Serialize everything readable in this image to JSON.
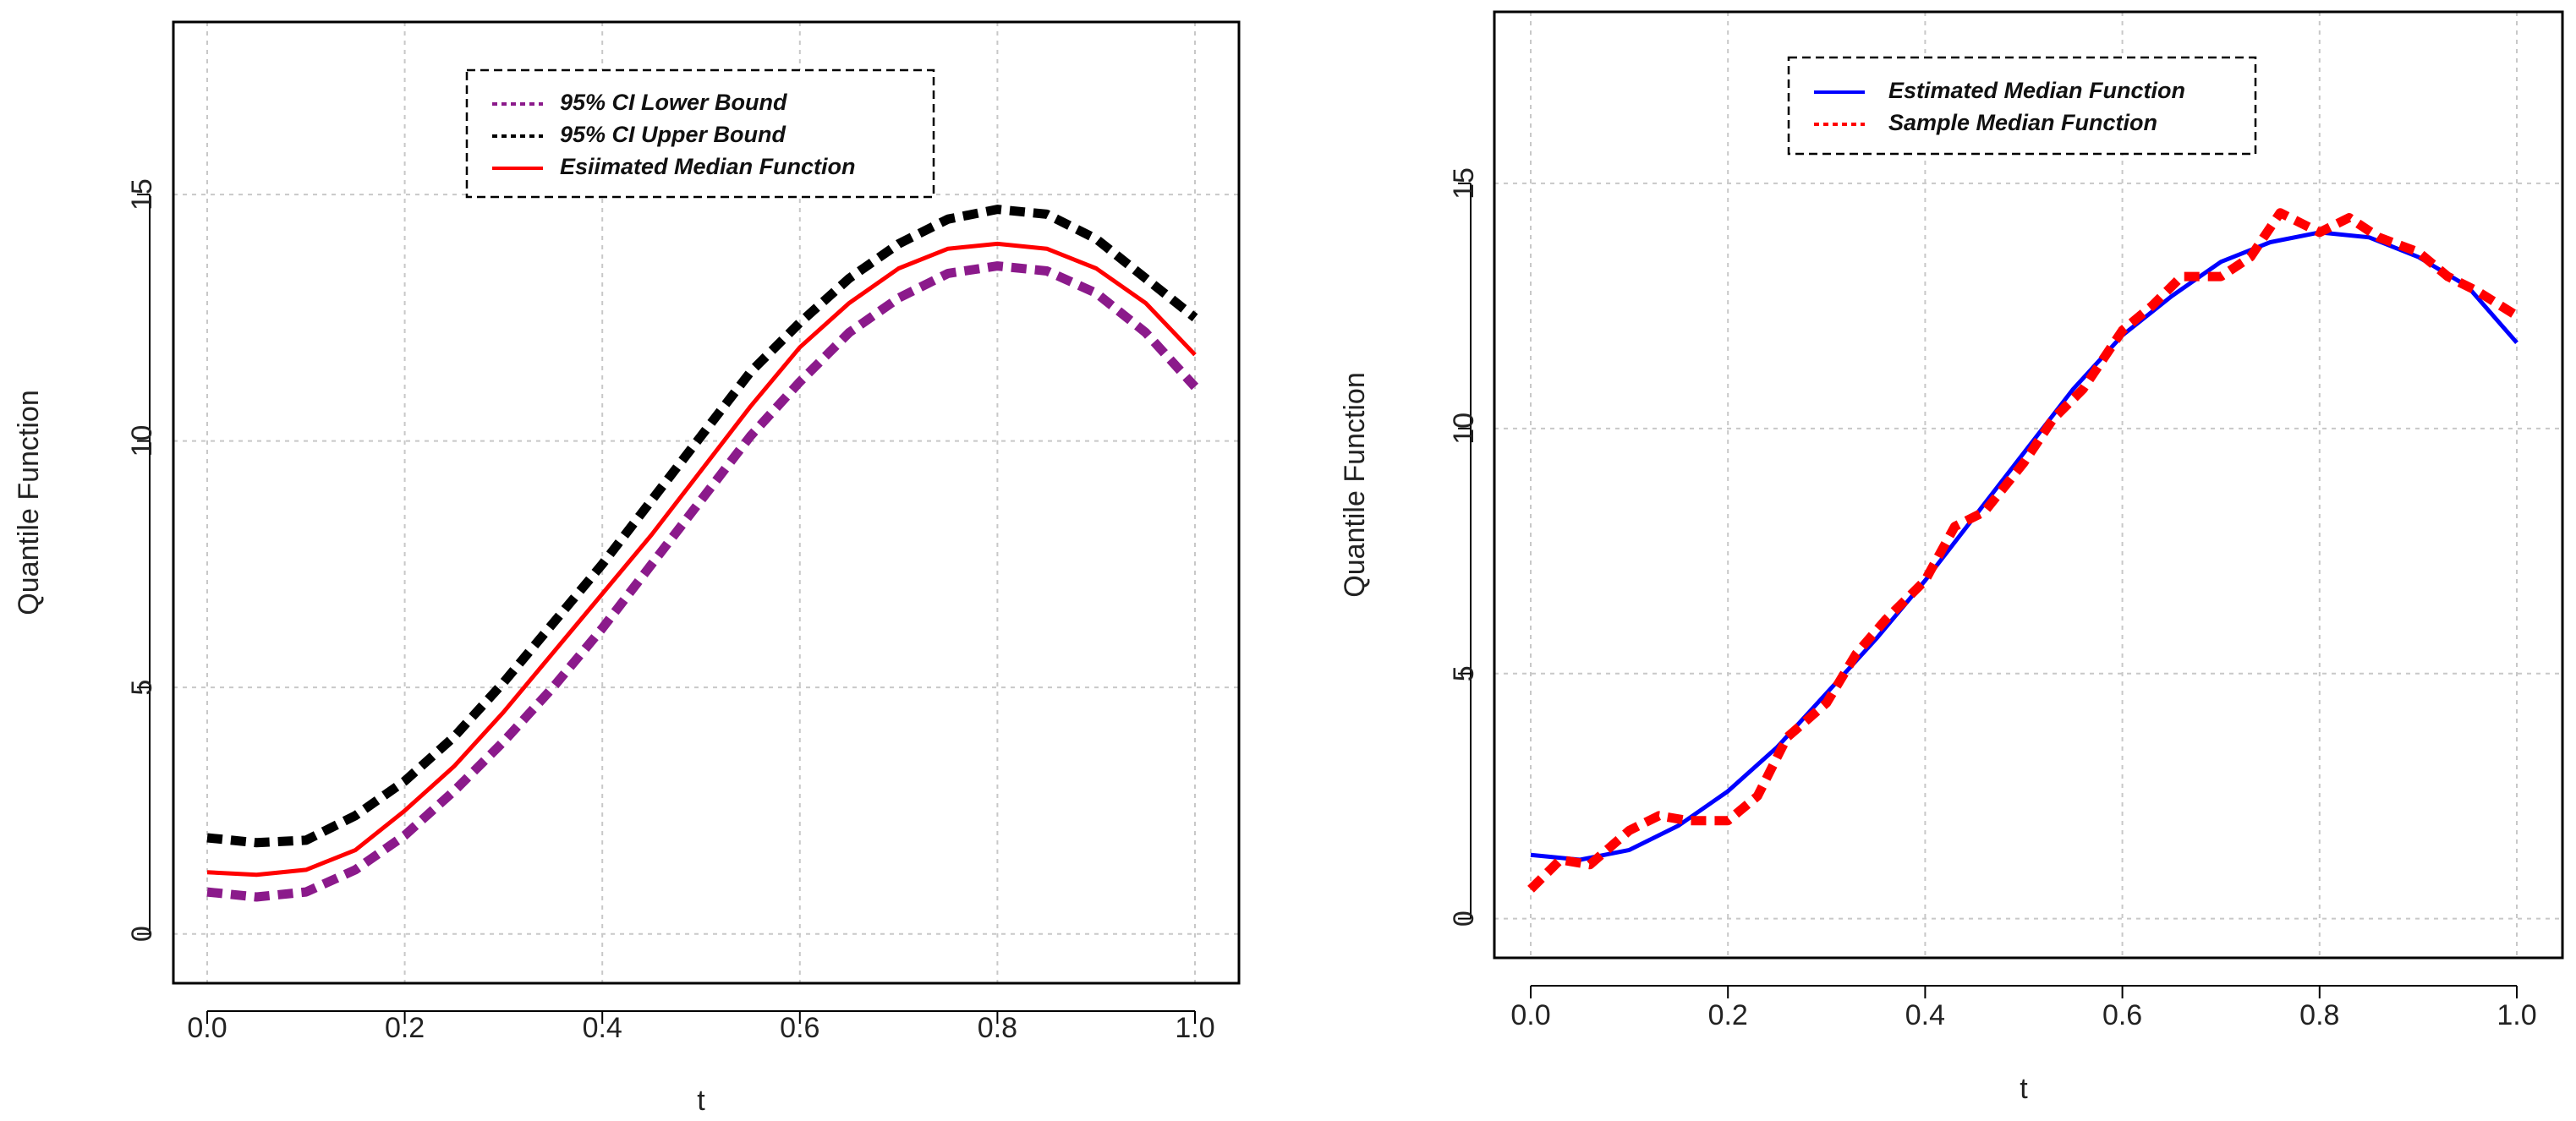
{
  "chart_data": [
    {
      "type": "line",
      "xlabel": "t",
      "ylabel": "Quantile Function",
      "xlim": [
        0,
        1
      ],
      "ylim": [
        -1,
        18.5
      ],
      "xticks": [
        "0.0",
        "0.2",
        "0.4",
        "0.6",
        "0.8",
        "1.0"
      ],
      "yticks": [
        "0",
        "5",
        "10",
        "15"
      ],
      "grid": true,
      "legend_position": "top-center",
      "x": [
        0.0,
        0.05,
        0.1,
        0.15,
        0.2,
        0.25,
        0.3,
        0.35,
        0.4,
        0.45,
        0.5,
        0.55,
        0.6,
        0.65,
        0.7,
        0.75,
        0.8,
        0.85,
        0.9,
        0.95,
        1.0
      ],
      "series": [
        {
          "name": "95% CI Lower Bound",
          "color": "#8b1a8b",
          "style": "dashed",
          "values": [
            0.85,
            0.75,
            0.85,
            1.3,
            2.0,
            2.9,
            3.9,
            5.0,
            6.2,
            7.5,
            8.8,
            10.1,
            11.2,
            12.2,
            12.9,
            13.4,
            13.55,
            13.45,
            13.0,
            12.2,
            11.1
          ]
        },
        {
          "name": "95% CI Upper Bound",
          "color": "#000000",
          "style": "dashed",
          "values": [
            1.95,
            1.85,
            1.9,
            2.4,
            3.1,
            4.0,
            5.1,
            6.3,
            7.5,
            8.8,
            10.1,
            11.4,
            12.4,
            13.3,
            14.0,
            14.5,
            14.7,
            14.6,
            14.1,
            13.3,
            12.5
          ]
        },
        {
          "name": "Esiimated Median Function",
          "color": "#ff0000",
          "style": "solid",
          "values": [
            1.25,
            1.2,
            1.3,
            1.7,
            2.5,
            3.4,
            4.5,
            5.7,
            6.9,
            8.1,
            9.4,
            10.7,
            11.9,
            12.8,
            13.5,
            13.9,
            14.0,
            13.9,
            13.5,
            12.8,
            11.75
          ]
        }
      ]
    },
    {
      "type": "line",
      "xlabel": "t",
      "ylabel": "Quantile Function",
      "xlim": [
        0,
        1
      ],
      "ylim": [
        -0.8,
        18.5
      ],
      "xticks": [
        "0.0",
        "0.2",
        "0.4",
        "0.6",
        "0.8",
        "1.0"
      ],
      "yticks": [
        "0",
        "5",
        "10",
        "15"
      ],
      "grid": true,
      "legend_position": "top-center",
      "series": [
        {
          "name": "Estimated Median Function",
          "color": "#0000ff",
          "style": "solid",
          "x": [
            0.0,
            0.05,
            0.1,
            0.15,
            0.2,
            0.25,
            0.3,
            0.35,
            0.4,
            0.45,
            0.5,
            0.55,
            0.6,
            0.65,
            0.7,
            0.75,
            0.8,
            0.85,
            0.9,
            0.95,
            1.0
          ],
          "values": [
            1.3,
            1.2,
            1.4,
            1.9,
            2.6,
            3.5,
            4.6,
            5.7,
            6.9,
            8.2,
            9.5,
            10.8,
            11.9,
            12.7,
            13.4,
            13.8,
            14.0,
            13.9,
            13.5,
            12.9,
            11.75
          ]
        },
        {
          "name": "Sample Median Function",
          "color": "#ff0000",
          "style": "dashed",
          "x": [
            0.0,
            0.03,
            0.06,
            0.1,
            0.13,
            0.16,
            0.2,
            0.23,
            0.26,
            0.3,
            0.33,
            0.36,
            0.4,
            0.43,
            0.46,
            0.5,
            0.53,
            0.56,
            0.6,
            0.63,
            0.66,
            0.7,
            0.73,
            0.76,
            0.8,
            0.83,
            0.86,
            0.9,
            0.93,
            0.96,
            1.0
          ],
          "values": [
            0.6,
            1.2,
            1.1,
            1.8,
            2.1,
            2.0,
            2.0,
            2.5,
            3.7,
            4.4,
            5.4,
            6.1,
            6.9,
            8.0,
            8.3,
            9.3,
            10.2,
            10.8,
            12.0,
            12.5,
            13.1,
            13.1,
            13.5,
            14.4,
            14.0,
            14.3,
            13.9,
            13.6,
            13.1,
            12.8,
            12.3
          ]
        }
      ]
    }
  ]
}
